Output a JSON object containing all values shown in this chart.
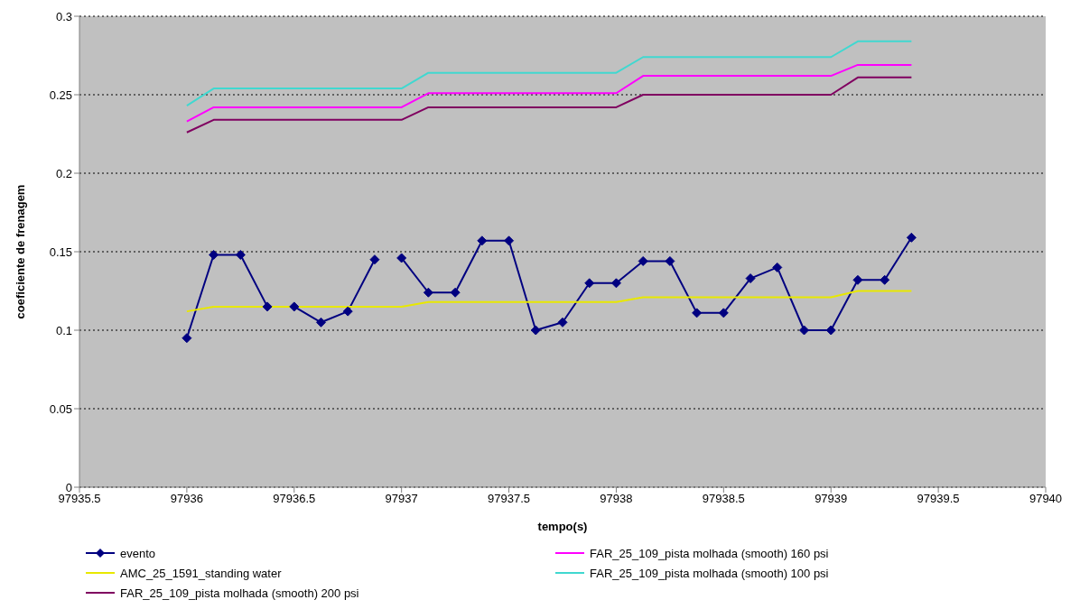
{
  "chart_data": {
    "type": "line",
    "xlabel": "tempo(s)",
    "ylabel": "coeficiente de frenagem",
    "xlim": [
      97935.5,
      97940
    ],
    "xticks": [
      97935.5,
      97936,
      97936.5,
      97937,
      97937.5,
      97938,
      97938.5,
      97939,
      97939.5,
      97940
    ],
    "ylim": [
      0,
      0.3
    ],
    "yticks": [
      0,
      0.05,
      0.1,
      0.15,
      0.2,
      0.25,
      0.3
    ],
    "grid": "y",
    "legend": "bottom",
    "series": [
      {
        "name": "evento",
        "color": "#000080",
        "marker": "diamond",
        "x": [
          97936,
          97936.125,
          97936.25,
          97936.375,
          97936.5,
          97936.625,
          97936.75,
          97936.875,
          97936.9375,
          97937,
          97937.125,
          97937.25,
          97937.375,
          97937.5,
          97937.625,
          97937.75,
          97937.875,
          97938,
          97938.125,
          97938.25,
          97938.375,
          97938.5,
          97938.625,
          97938.75,
          97938.875,
          97939,
          97939.125,
          97939.25,
          97939.375
        ],
        "values": [
          0.095,
          0.148,
          0.148,
          0.115,
          0.115,
          0.105,
          0.112,
          0.145,
          null,
          0.146,
          0.124,
          0.124,
          0.157,
          0.157,
          0.1,
          0.105,
          0.13,
          0.13,
          0.144,
          0.144,
          0.111,
          0.111,
          0.133,
          0.14,
          0.1,
          0.1,
          0.132,
          0.132,
          0.159
        ]
      },
      {
        "name": "AMC_25_1591_standing water",
        "color": "#e8e800",
        "marker": "none",
        "x": [
          97936,
          97936.125,
          97937,
          97937.125,
          97938,
          97938.125,
          97939,
          97939.125,
          97939.375
        ],
        "values": [
          0.112,
          0.115,
          0.115,
          0.118,
          0.118,
          0.121,
          0.121,
          0.125,
          0.125
        ]
      },
      {
        "name": "FAR_25_109_pista molhada (smooth) 200 psi",
        "color": "#800060",
        "marker": "none",
        "x": [
          97936,
          97936.125,
          97937,
          97937.125,
          97938,
          97938.125,
          97939,
          97939.125,
          97939.375
        ],
        "values": [
          0.226,
          0.234,
          0.234,
          0.242,
          0.242,
          0.25,
          0.25,
          0.261,
          0.261
        ]
      },
      {
        "name": "FAR_25_109_pista molhada (smooth) 160 psi",
        "color": "#ff00ff",
        "marker": "none",
        "x": [
          97936,
          97936.125,
          97937,
          97937.125,
          97938,
          97938.125,
          97939,
          97939.125,
          97939.375
        ],
        "values": [
          0.233,
          0.242,
          0.242,
          0.251,
          0.251,
          0.262,
          0.262,
          0.269,
          0.269
        ]
      },
      {
        "name": "FAR_25_109_pista molhada (smooth) 100 psi",
        "color": "#40d8d0",
        "marker": "none",
        "x": [
          97936,
          97936.125,
          97937,
          97937.125,
          97938,
          97938.125,
          97939,
          97939.125,
          97939.375
        ],
        "values": [
          0.243,
          0.254,
          0.254,
          0.264,
          0.264,
          0.274,
          0.274,
          0.284,
          0.284
        ]
      }
    ]
  }
}
